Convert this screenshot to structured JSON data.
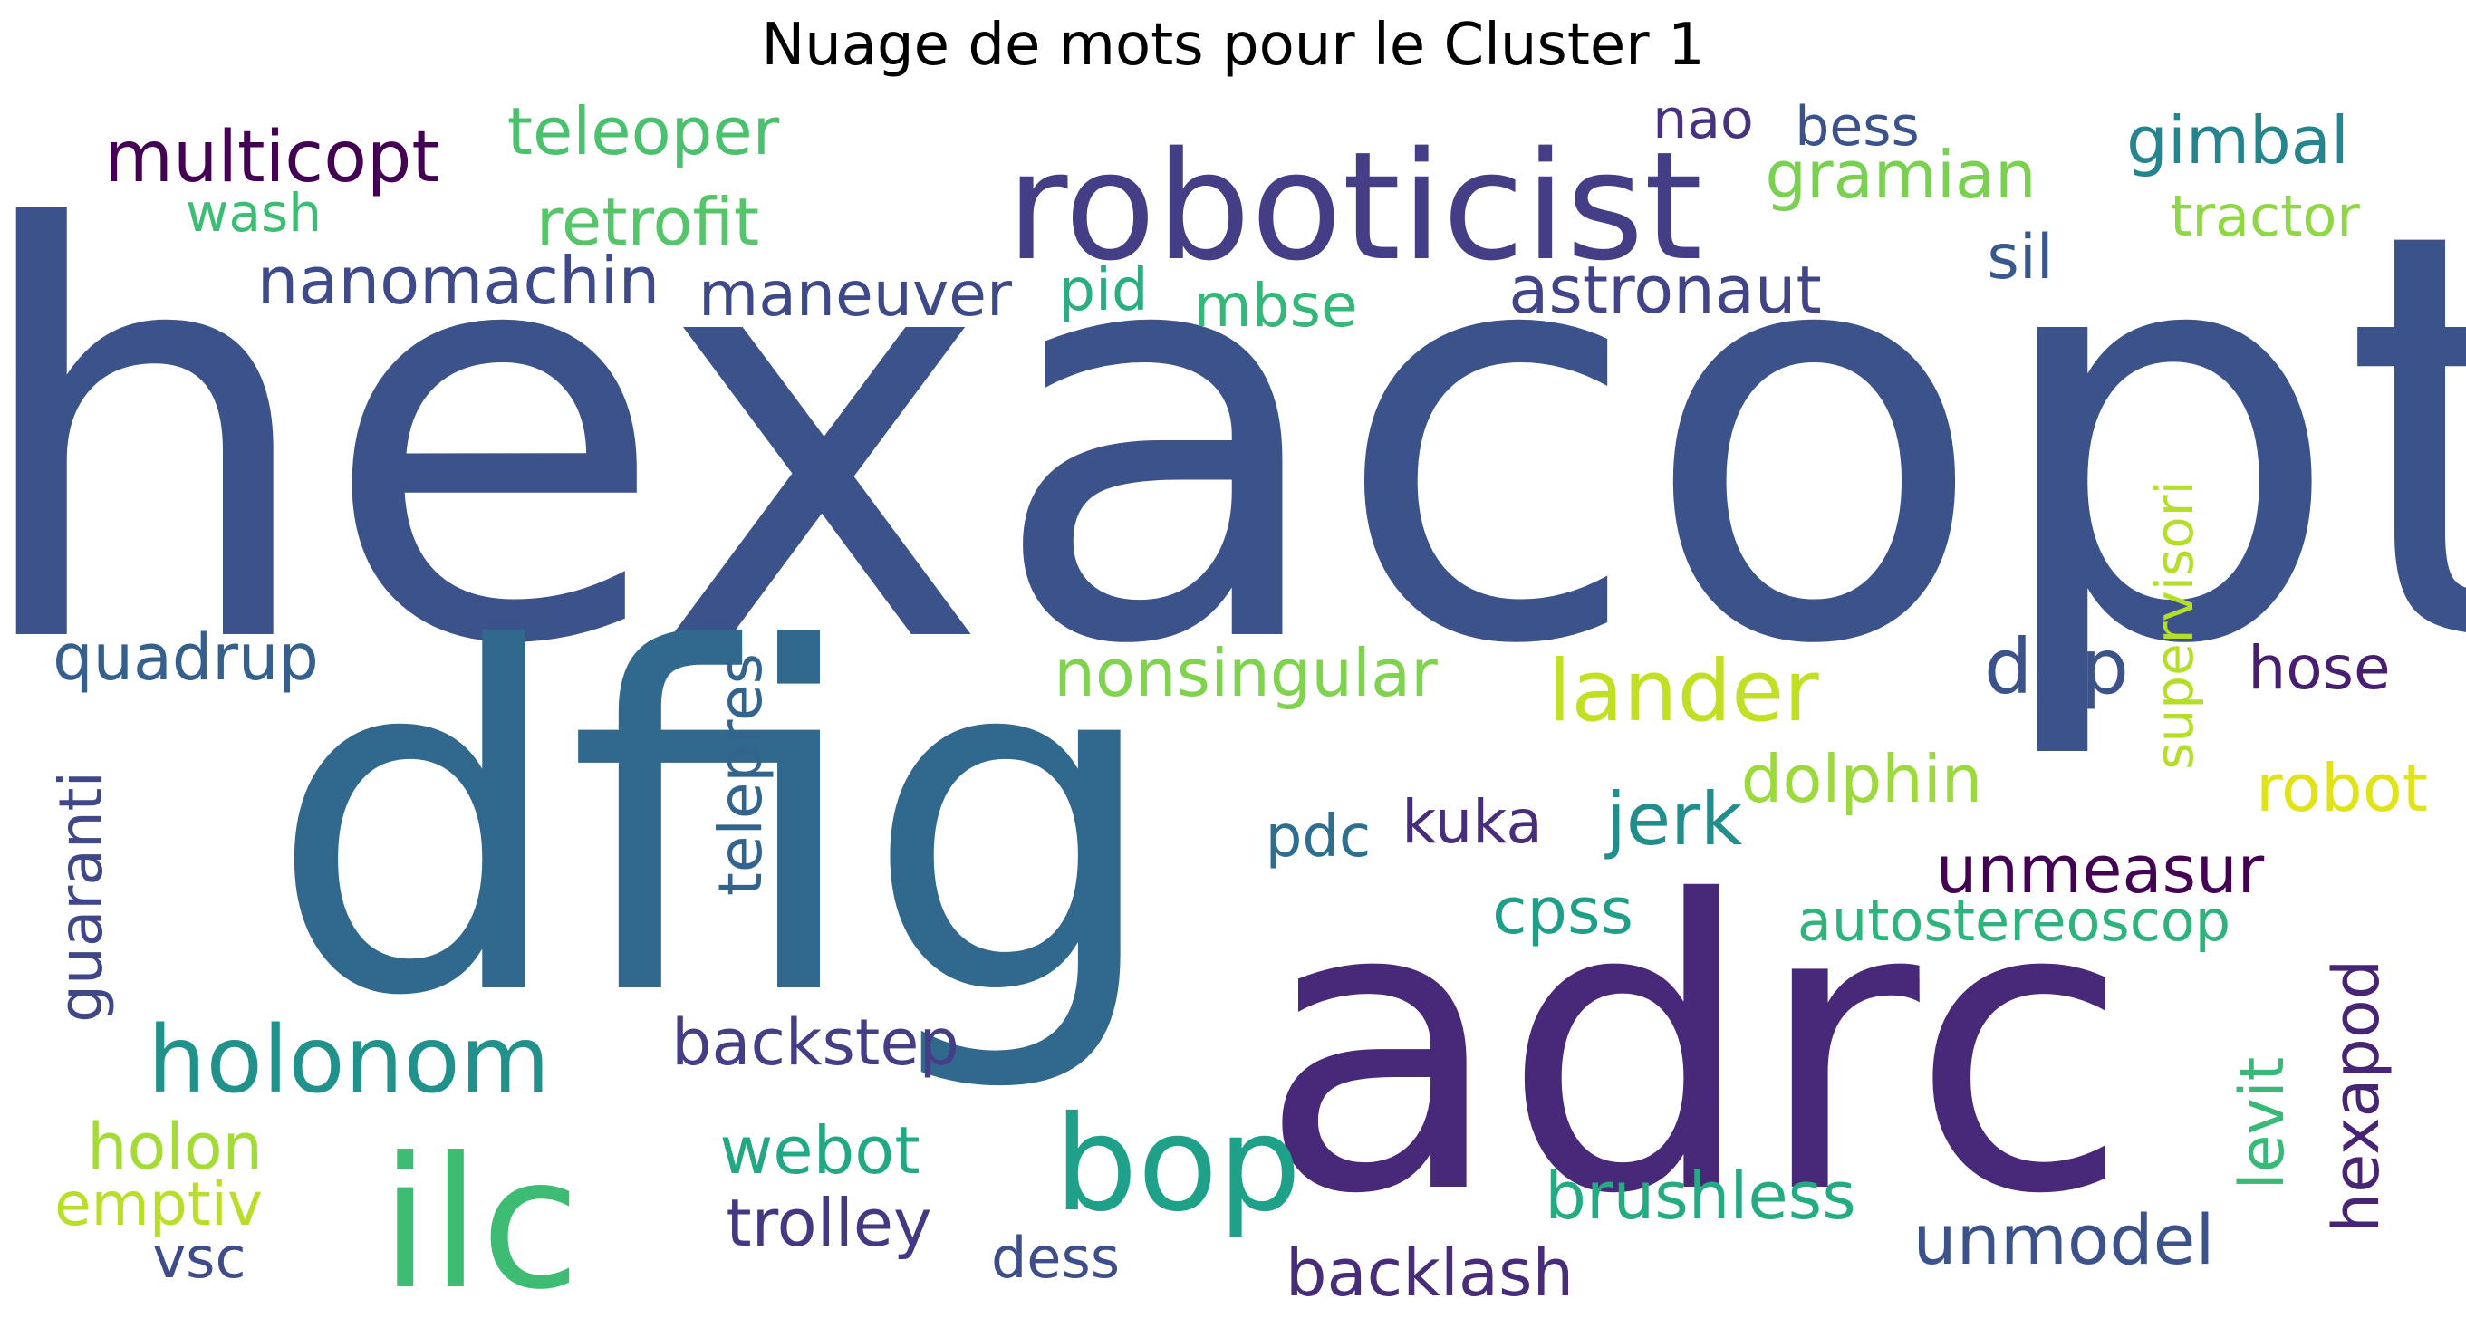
{
  "title": "Nuage de mots pour le Cluster 1",
  "words": [
    {
      "text": "hexacopt",
      "color": "#3b528b"
    },
    {
      "text": "dfig",
      "color": "#31688e"
    },
    {
      "text": "adrc",
      "color": "#482878"
    },
    {
      "text": "roboticist",
      "color": "#433e85"
    },
    {
      "text": "ilc",
      "color": "#3fbc73"
    },
    {
      "text": "bop",
      "color": "#1fa088"
    },
    {
      "text": "holonom",
      "color": "#21918c"
    },
    {
      "text": "lander",
      "color": "#c2df23"
    },
    {
      "text": "multicopt",
      "color": "#440154"
    },
    {
      "text": "teleoper",
      "color": "#4ac16d"
    },
    {
      "text": "retrofit",
      "color": "#54c568"
    },
    {
      "text": "wash",
      "color": "#3dbc74"
    },
    {
      "text": "nanomachin",
      "color": "#3e4a89"
    },
    {
      "text": "maneuver",
      "color": "#3e4989"
    },
    {
      "text": "pid",
      "color": "#29af7f"
    },
    {
      "text": "mbse",
      "color": "#35b779"
    },
    {
      "text": "astronaut",
      "color": "#414487"
    },
    {
      "text": "nao",
      "color": "#46327e"
    },
    {
      "text": "bess",
      "color": "#3b528b"
    },
    {
      "text": "gramian",
      "color": "#7ad151"
    },
    {
      "text": "gimbal",
      "color": "#25848e"
    },
    {
      "text": "tractor",
      "color": "#8fd744"
    },
    {
      "text": "sil",
      "color": "#38598c"
    },
    {
      "text": "quadrup",
      "color": "#355f8d"
    },
    {
      "text": "nonsingular",
      "color": "#7fd34e"
    },
    {
      "text": "dgp",
      "color": "#3b528b"
    },
    {
      "text": "hose",
      "color": "#481f70"
    },
    {
      "text": "supervisori",
      "color": "#b5de2b"
    },
    {
      "text": "dolphin",
      "color": "#9bd93c"
    },
    {
      "text": "robot",
      "color": "#e0e318"
    },
    {
      "text": "telepres",
      "color": "#32648e"
    },
    {
      "text": "guaranti",
      "color": "#3f4788"
    },
    {
      "text": "pdc",
      "color": "#2e6e8e"
    },
    {
      "text": "kuka",
      "color": "#472d7b"
    },
    {
      "text": "jerk",
      "color": "#228d8d"
    },
    {
      "text": "unmeasur",
      "color": "#440154"
    },
    {
      "text": "cpss",
      "color": "#1f9e89"
    },
    {
      "text": "autostereoscop",
      "color": "#2eb37c"
    },
    {
      "text": "backstep",
      "color": "#433e85"
    },
    {
      "text": "hexapod",
      "color": "#482475"
    },
    {
      "text": "levit",
      "color": "#38b977"
    },
    {
      "text": "holon",
      "color": "#a5db36"
    },
    {
      "text": "webot",
      "color": "#22a884"
    },
    {
      "text": "emptiv",
      "color": "#b8de29"
    },
    {
      "text": "trolley",
      "color": "#453781"
    },
    {
      "text": "brushless",
      "color": "#25ab82"
    },
    {
      "text": "unmodel",
      "color": "#3b528b"
    },
    {
      "text": "vsc",
      "color": "#3e4c8a"
    },
    {
      "text": "dess",
      "color": "#3d4e8a"
    },
    {
      "text": "backlash",
      "color": "#472c7a"
    }
  ]
}
